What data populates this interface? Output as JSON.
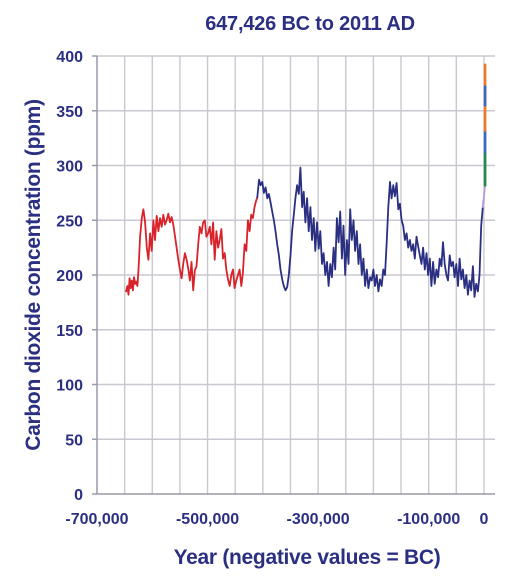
{
  "chart_data": {
    "type": "line",
    "title": "647,426 BC to 2011 AD",
    "xlabel": "Year (negative values = BC)",
    "ylabel": "Carbon dioxide concentration (ppm)",
    "xlim": [
      -700000,
      20000
    ],
    "ylim": [
      0,
      400
    ],
    "x_ticks": [
      {
        "value": -700000,
        "label": "-700,000"
      },
      {
        "value": -500000,
        "label": "-500,000"
      },
      {
        "value": -300000,
        "label": "-300,000"
      },
      {
        "value": -100000,
        "label": "-100,000"
      },
      {
        "value": 0,
        "label": "0"
      }
    ],
    "y_ticks": [
      {
        "value": 0,
        "label": "0"
      },
      {
        "value": 50,
        "label": "50"
      },
      {
        "value": 100,
        "label": "100"
      },
      {
        "value": 150,
        "label": "150"
      },
      {
        "value": 200,
        "label": "200"
      },
      {
        "value": 250,
        "label": "250"
      },
      {
        "value": 300,
        "label": "300"
      },
      {
        "value": 350,
        "label": "350"
      },
      {
        "value": 400,
        "label": "400"
      }
    ],
    "grid": true,
    "colors": {
      "title": "#2b2f82",
      "axis_text": "#2b2f82",
      "grid": "#c8c8d0",
      "axis": "#9a9aa8"
    },
    "series": [
      {
        "color": "#d8232a",
        "x": [
          -647426,
          -645000,
          -643000,
          -641000,
          -639000,
          -637000,
          -635000,
          -633000,
          -631000,
          -629000,
          -627000,
          -625000,
          -622000,
          -619000,
          -616000,
          -613000,
          -610000,
          -607000,
          -604000,
          -601000,
          -598000,
          -595000,
          -592000,
          -589000,
          -586000,
          -583000,
          -580000,
          -577000,
          -574000,
          -571000,
          -568000,
          -565000,
          -562000,
          -559000,
          -556000,
          -553000,
          -550000,
          -547000,
          -544000,
          -541000,
          -538000,
          -535000,
          -532000,
          -529000,
          -526000,
          -523000,
          -520000,
          -517000,
          -514000,
          -511000,
          -508000,
          -505000,
          -502000,
          -499000,
          -496000,
          -493000,
          -490000,
          -487000,
          -484000,
          -481000,
          -478000,
          -475000,
          -472000,
          -469000,
          -466000,
          -463000,
          -460000,
          -457000,
          -454000,
          -451000,
          -448000,
          -445000,
          -442000,
          -439000,
          -436000,
          -433000,
          -430000,
          -427000,
          -424000,
          -421000,
          -418000,
          -415000,
          -412000,
          -410000
        ],
        "y": [
          185,
          190,
          182,
          197,
          188,
          195,
          186,
          198,
          192,
          194,
          190,
          205,
          235,
          252,
          260,
          248,
          225,
          214,
          238,
          222,
          250,
          232,
          254,
          240,
          252,
          244,
          255,
          246,
          250,
          256,
          248,
          253,
          246,
          236,
          225,
          214,
          205,
          197,
          210,
          220,
          214,
          206,
          195,
          212,
          186,
          204,
          208,
          228,
          244,
          238,
          248,
          250,
          235,
          238,
          244,
          228,
          248,
          214,
          240,
          225,
          232,
          242,
          215,
          220,
          205,
          196,
          190,
          200,
          205,
          188,
          195,
          200,
          205,
          190,
          202,
          228,
          222,
          250,
          240,
          255,
          252,
          262,
          268,
          271
        ]
      },
      {
        "color": "#2b2f82",
        "x": [
          -410000,
          -407000,
          -404000,
          -401000,
          -398000,
          -395000,
          -392000,
          -389000,
          -386000,
          -383000,
          -380000,
          -377000,
          -374000,
          -371000,
          -368000,
          -365000,
          -362000,
          -359000,
          -356000,
          -353000,
          -350000,
          -347000,
          -344000,
          -341000,
          -338000,
          -335000,
          -332000,
          -329000,
          -326000,
          -323000,
          -320000,
          -317000,
          -314000,
          -311000,
          -308000,
          -305000,
          -302000,
          -299000,
          -296000,
          -293000,
          -290000,
          -287000,
          -284000,
          -281000,
          -278000,
          -275000,
          -272000,
          -269000,
          -266000,
          -263000,
          -260000,
          -257000,
          -254000,
          -251000,
          -248000,
          -245000,
          -242000,
          -239000,
          -236000,
          -233000,
          -230000,
          -227000,
          -224000,
          -221000,
          -218000,
          -215000,
          -212000,
          -209000,
          -206000,
          -203000,
          -200000,
          -197000,
          -194000,
          -191000,
          -188000,
          -185000,
          -182000,
          -179000,
          -176000,
          -173000,
          -170000,
          -167000,
          -164000,
          -161000,
          -158000,
          -155000,
          -152000,
          -149000,
          -146000,
          -143000,
          -140000,
          -137000,
          -134000,
          -131000,
          -128000,
          -125000,
          -122000,
          -119000,
          -116000,
          -113000,
          -110000,
          -107000,
          -104000,
          -101000,
          -98000,
          -95000,
          -92000,
          -89000,
          -86000,
          -83000,
          -80000,
          -77000,
          -74000,
          -71000,
          -68000,
          -65000,
          -62000,
          -59000,
          -56000,
          -53000,
          -50000,
          -47000,
          -44000,
          -41000,
          -38000,
          -35000,
          -32000,
          -29000,
          -26000,
          -23000,
          -20000,
          -17000,
          -14000,
          -11000,
          -8000,
          -5000,
          -2000
        ],
        "y": [
          271,
          287,
          282,
          285,
          275,
          280,
          270,
          274,
          266,
          258,
          250,
          240,
          228,
          218,
          205,
          196,
          190,
          186,
          189,
          200,
          218,
          240,
          255,
          270,
          282,
          274,
          298,
          262,
          276,
          248,
          270,
          240,
          262,
          232,
          252,
          222,
          248,
          224,
          240,
          210,
          220,
          200,
          212,
          190,
          210,
          198,
          225,
          205,
          252,
          230,
          258,
          215,
          245,
          200,
          232,
          210,
          260,
          232,
          250,
          222,
          240,
          210,
          228,
          200,
          215,
          190,
          205,
          188,
          198,
          195,
          205,
          190,
          200,
          185,
          196,
          190,
          205,
          200,
          230,
          262,
          285,
          270,
          282,
          272,
          284,
          260,
          265,
          250,
          245,
          232,
          238,
          225,
          232,
          222,
          228,
          215,
          235,
          226,
          218,
          210,
          225,
          205,
          220,
          200,
          215,
          190,
          212,
          192,
          205,
          198,
          215,
          208,
          230,
          210,
          200,
          195,
          218,
          208,
          212,
          198,
          210,
          190,
          215,
          196,
          205,
          188,
          200,
          182,
          195,
          186,
          208,
          180,
          192,
          185,
          200,
          245,
          262
        ]
      },
      {
        "color": "#b79adb",
        "x": [
          -2000,
          -1200,
          -500,
          0,
          500,
          1000,
          1500,
          2000
        ],
        "y": [
          262,
          268,
          266,
          272,
          274,
          277,
          280,
          282
        ]
      },
      {
        "color": "#1f8a4a",
        "x": [
          2000,
          2000,
          2000,
          2000
        ],
        "y": [
          282,
          295,
          305,
          312
        ]
      },
      {
        "color": "#3b66c4",
        "x": [
          2000,
          2000,
          2000
        ],
        "y": [
          312,
          325,
          332
        ]
      },
      {
        "color": "#f07a24",
        "x": [
          2000,
          2000,
          2000
        ],
        "y": [
          332,
          360,
          392
        ]
      },
      {
        "color": "#3b66c4",
        "x": [
          2000,
          2000
        ],
        "y": [
          355,
          372
        ]
      }
    ]
  }
}
